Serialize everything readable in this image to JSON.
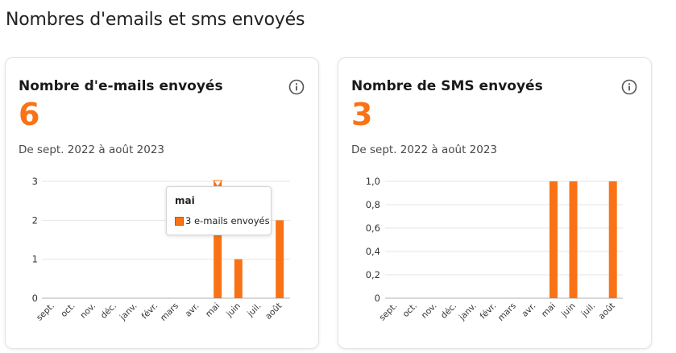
{
  "page": {
    "title": "Nombres d'emails et sms envoyés"
  },
  "colors": {
    "accent": "#f97316",
    "grid": "#e6e6e6",
    "axis": "#b0b0b0"
  },
  "cards": {
    "emails": {
      "title": "Nombre d'e-mails envoyés",
      "value": "6",
      "period": "De sept. 2022 à août 2023",
      "icon": "info-icon"
    },
    "sms": {
      "title": "Nombre de SMS envoyés",
      "value": "3",
      "period": "De sept. 2022 à août 2023",
      "icon": "info-icon"
    }
  },
  "tooltip": {
    "title": "mai",
    "label": "3 e-mails envoyés"
  },
  "chart_data": [
    {
      "type": "bar",
      "categories": [
        "sept.",
        "oct.",
        "nov.",
        "déc.",
        "janv.",
        "févr.",
        "mars",
        "avr.",
        "mai",
        "juin",
        "juil.",
        "août"
      ],
      "values": [
        0,
        0,
        0,
        0,
        0,
        0,
        0,
        0,
        3,
        1,
        0,
        2
      ],
      "ylim": [
        0,
        3
      ],
      "yticks": [
        "0",
        "1",
        "2",
        "3"
      ],
      "grid": true,
      "highlighted": "mai"
    },
    {
      "type": "bar",
      "categories": [
        "sept.",
        "oct.",
        "nov.",
        "déc.",
        "janv.",
        "févr.",
        "mars",
        "avr.",
        "mai",
        "juin",
        "juil.",
        "août"
      ],
      "values": [
        0,
        0,
        0,
        0,
        0,
        0,
        0,
        0,
        1,
        1,
        0,
        1
      ],
      "ylim": [
        0,
        1
      ],
      "yticks": [
        "0",
        "0,2",
        "0,4",
        "0,6",
        "0,8",
        "1,0"
      ],
      "grid": true
    }
  ]
}
